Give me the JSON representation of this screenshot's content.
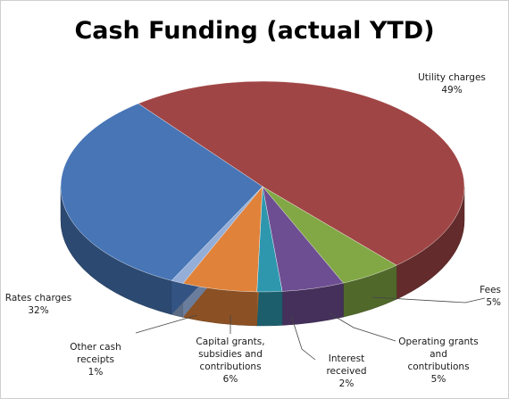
{
  "chart_data": {
    "type": "pie",
    "title": "Cash Funding (actual YTD)",
    "three_d": true,
    "legend": "none",
    "slices": [
      {
        "name": "Utility charges",
        "value": 49,
        "label": "49%",
        "color": "#A04545"
      },
      {
        "name": "Fees",
        "value": 5,
        "label": "5%",
        "color": "#82A845"
      },
      {
        "name": "Operating grants and contributions",
        "value": 5,
        "label": "5%",
        "color": "#6E4E92"
      },
      {
        "name": "Interest received",
        "value": 2,
        "label": "2%",
        "color": "#2E97AE"
      },
      {
        "name": "Capital grants, subsidies and contributions",
        "value": 6,
        "label": "6%",
        "color": "#E0823A"
      },
      {
        "name": "Other cash receipts",
        "value": 1,
        "label": "1%",
        "color": "#94AED8"
      },
      {
        "name": "Rates charges",
        "value": 32,
        "label": "32%",
        "color": "#4775B6"
      }
    ]
  }
}
